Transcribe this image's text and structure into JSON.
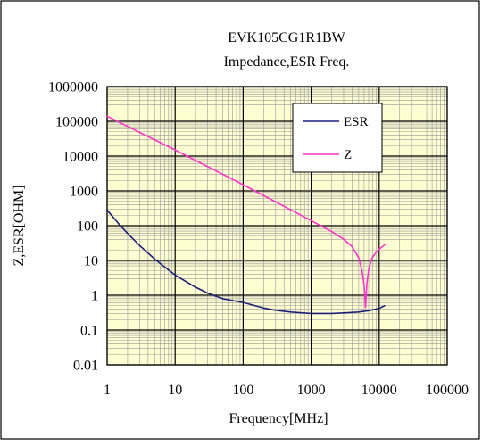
{
  "chart_data": {
    "type": "line",
    "title": "EVK105CG1R1BW",
    "subtitle": "Impedance,ESR Freq.",
    "xlabel": "Frequency[MHz]",
    "ylabel": "Z,ESR[OHM]",
    "x_scale": "log",
    "y_scale": "log",
    "xlim": [
      1,
      100000
    ],
    "ylim": [
      0.01,
      1000000
    ],
    "x_ticks": [
      "1",
      "10",
      "100",
      "1000",
      "10000",
      "100000"
    ],
    "y_ticks": [
      "0.01",
      "0.1",
      "1",
      "10",
      "100",
      "1000",
      "10000",
      "100000",
      "1000000"
    ],
    "grid": true,
    "legend_position": "top-right",
    "series": [
      {
        "name": "ESR",
        "color": "#1c1f7a",
        "x": [
          1,
          1.5,
          2,
          3,
          5,
          7,
          10,
          20,
          30,
          50,
          100,
          200,
          300,
          500,
          1000,
          2000,
          3000,
          5000,
          7000,
          10000,
          12000
        ],
        "y": [
          280,
          110,
          60,
          27,
          11,
          6.5,
          3.8,
          1.7,
          1.15,
          0.8,
          0.62,
          0.43,
          0.37,
          0.33,
          0.3,
          0.3,
          0.31,
          0.33,
          0.36,
          0.42,
          0.5
        ]
      },
      {
        "name": "Z",
        "color": "#ff33cc",
        "x": [
          1,
          10,
          100,
          1000,
          2000,
          3000,
          4000,
          5000,
          5600,
          6000,
          6300,
          6600,
          7000,
          7500,
          8000,
          9000,
          10000,
          12000
        ],
        "y": [
          140000,
          15000,
          1500,
          140,
          68,
          41,
          25,
          12,
          5,
          2,
          0.45,
          2.2,
          5.5,
          9,
          12.5,
          17,
          21,
          28
        ]
      }
    ]
  }
}
